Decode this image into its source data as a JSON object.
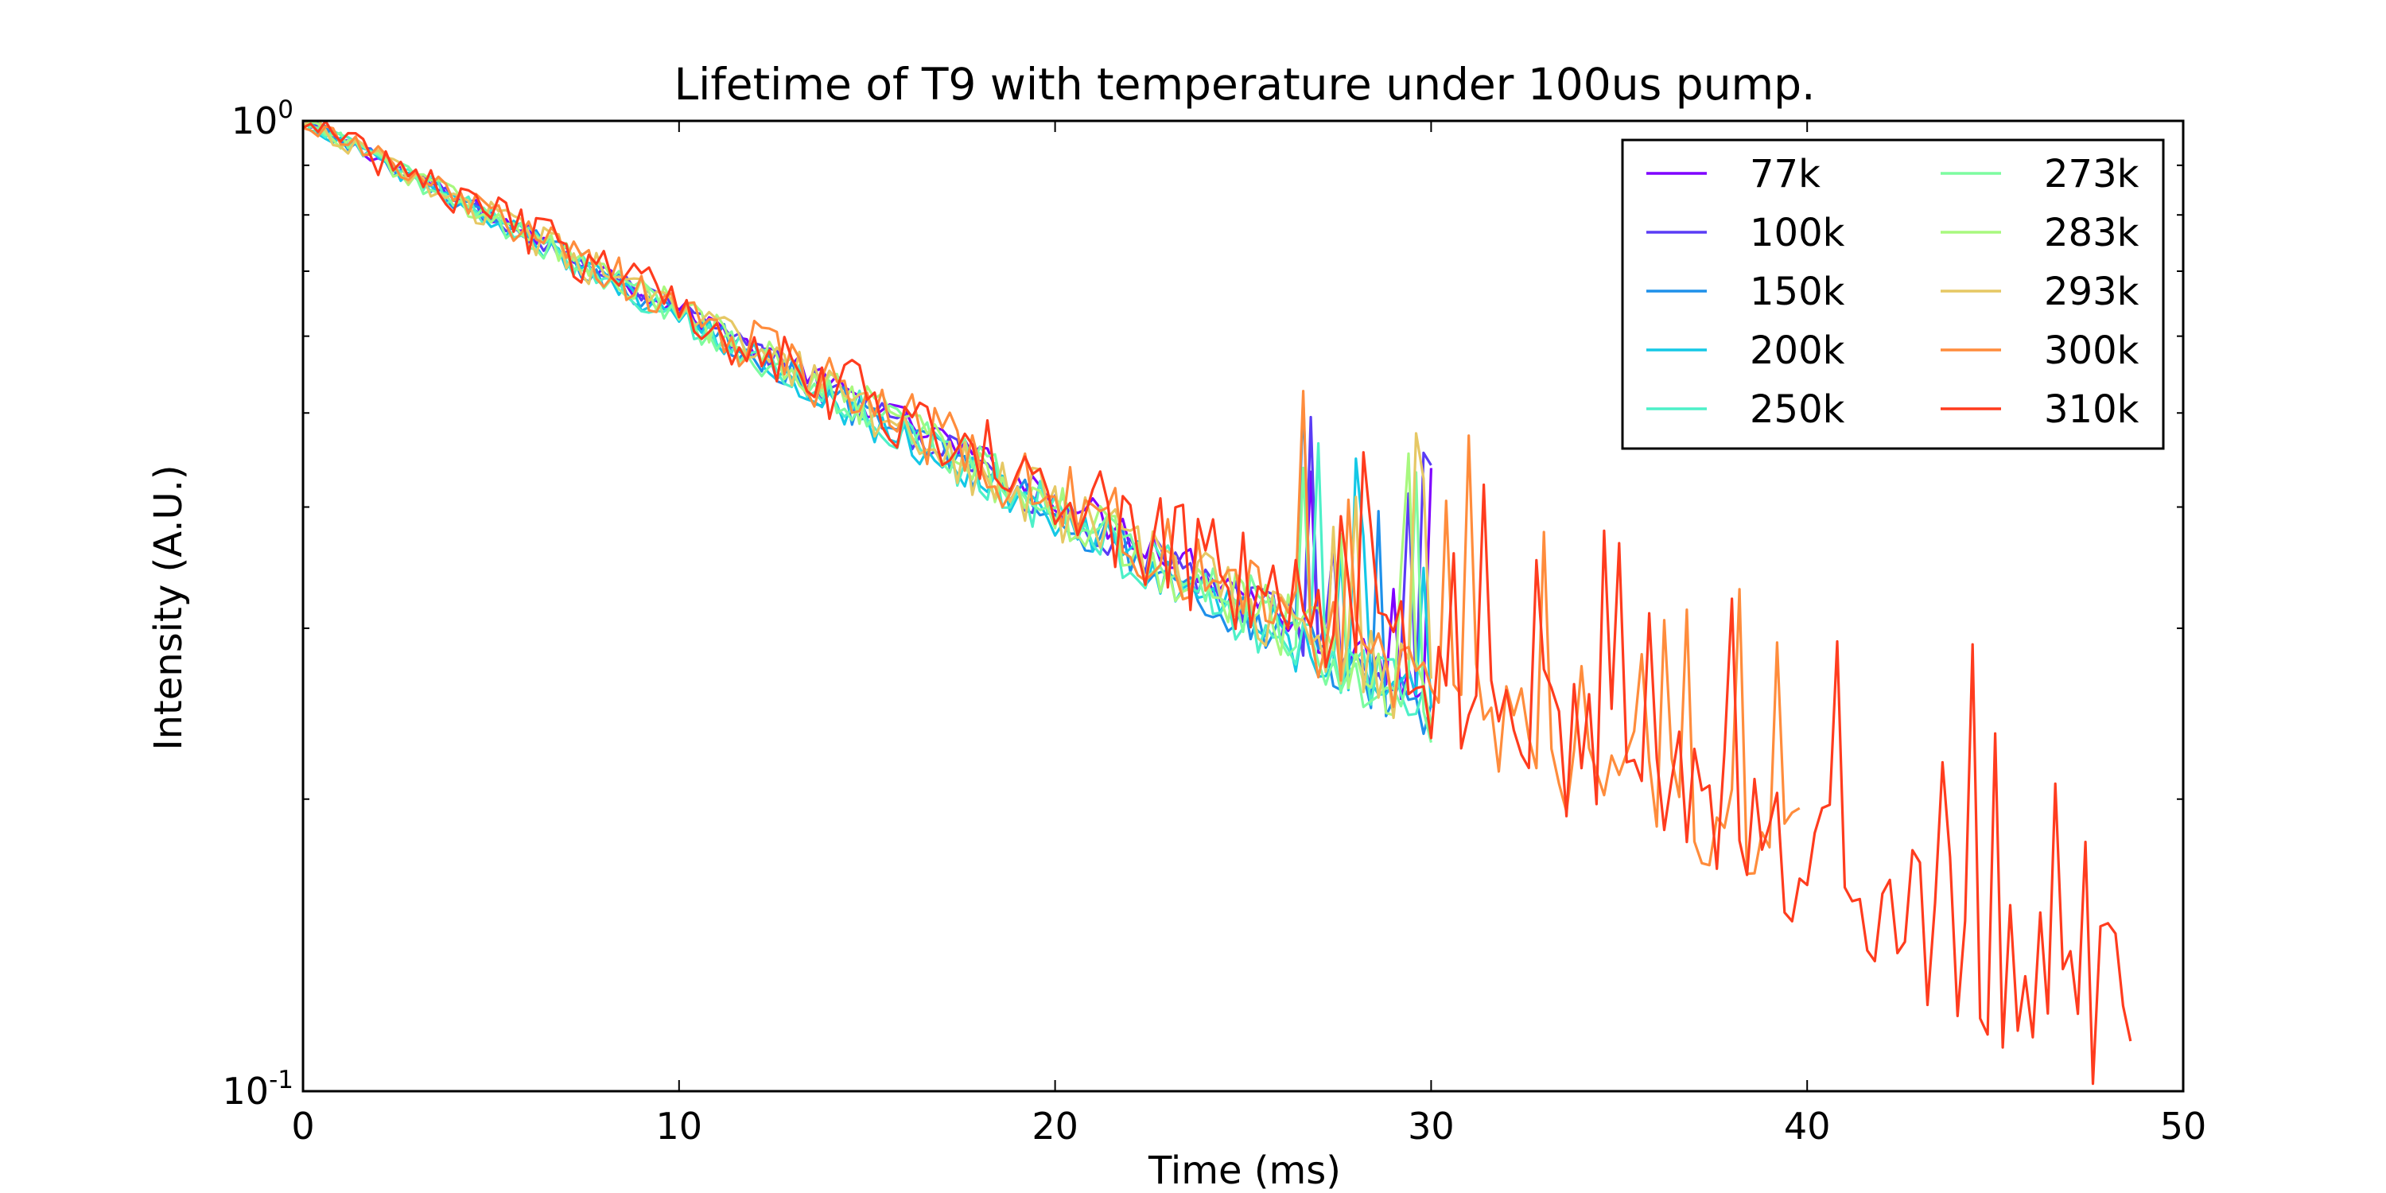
{
  "chart_data": {
    "type": "line",
    "title": "Lifetime of T9 with temperature under 100us pump.",
    "xlabel": "Time (ms)",
    "ylabel": "Intensity (A.U.)",
    "xlim": [
      0,
      50
    ],
    "ylim": [
      0.1,
      1.0
    ],
    "yscale": "log",
    "xticks": [
      0,
      10,
      20,
      30,
      40,
      50
    ],
    "xtick_labels": [
      "0",
      "10",
      "20",
      "30",
      "40",
      "50"
    ],
    "yticks": [
      {
        "value": 1.0,
        "base": "10",
        "exp": "0"
      },
      {
        "value": 0.1,
        "base": "10",
        "exp": "-1"
      }
    ],
    "grid": false,
    "legend": {
      "position": "top-right",
      "columns": 2
    },
    "series": [
      {
        "name": "77k",
        "color": "#7f00ff",
        "decay_ms": 22.2,
        "noise": 0.012,
        "points": [
          [
            0,
            1.0
          ],
          [
            10,
            0.64
          ],
          [
            20,
            0.41
          ],
          [
            25,
            0.33
          ],
          [
            28,
            0.28
          ],
          [
            30,
            0.26
          ]
        ]
      },
      {
        "name": "100k",
        "color": "#5a3cf5",
        "decay_ms": 22.0,
        "noise": 0.014,
        "points": [
          [
            0,
            1.0
          ],
          [
            10,
            0.635
          ],
          [
            20,
            0.4
          ],
          [
            25,
            0.32
          ],
          [
            28,
            0.28
          ],
          [
            30,
            0.26
          ]
        ]
      },
      {
        "name": "150k",
        "color": "#1e90ea",
        "decay_ms": 21.6,
        "noise": 0.016,
        "points": [
          [
            0,
            1.0
          ],
          [
            10,
            0.63
          ],
          [
            20,
            0.395
          ],
          [
            25,
            0.31
          ],
          [
            28,
            0.27
          ],
          [
            30,
            0.25
          ]
        ]
      },
      {
        "name": "200k",
        "color": "#14c8e6",
        "decay_ms": 21.4,
        "noise": 0.016,
        "points": [
          [
            0,
            1.0
          ],
          [
            10,
            0.625
          ],
          [
            20,
            0.39
          ],
          [
            25,
            0.31
          ],
          [
            28,
            0.27
          ],
          [
            30,
            0.25
          ]
        ]
      },
      {
        "name": "250k",
        "color": "#4df0c8",
        "decay_ms": 21.6,
        "noise": 0.018,
        "points": [
          [
            0,
            1.0
          ],
          [
            10,
            0.63
          ],
          [
            20,
            0.395
          ],
          [
            25,
            0.31
          ],
          [
            28,
            0.27
          ],
          [
            30,
            0.25
          ]
        ]
      },
      {
        "name": "273k",
        "color": "#7dfca0",
        "decay_ms": 21.8,
        "noise": 0.018,
        "points": [
          [
            0,
            1.0
          ],
          [
            10,
            0.63
          ],
          [
            20,
            0.4
          ],
          [
            25,
            0.32
          ],
          [
            28,
            0.27
          ],
          [
            30,
            0.25
          ]
        ]
      },
      {
        "name": "283k",
        "color": "#a8f87e",
        "decay_ms": 21.9,
        "noise": 0.02,
        "points": [
          [
            0,
            1.0
          ],
          [
            10,
            0.635
          ],
          [
            20,
            0.4
          ],
          [
            25,
            0.32
          ],
          [
            28,
            0.28
          ],
          [
            30,
            0.25
          ]
        ]
      },
      {
        "name": "293k",
        "color": "#e6c864",
        "decay_ms": 22.0,
        "noise": 0.022,
        "points": [
          [
            0,
            1.0
          ],
          [
            10,
            0.635
          ],
          [
            20,
            0.4
          ],
          [
            25,
            0.32
          ],
          [
            28,
            0.28
          ],
          [
            30,
            0.26
          ]
        ]
      },
      {
        "name": "300k",
        "color": "#ff8c3c",
        "decay_ms": 22.4,
        "noise": 0.026,
        "points": [
          [
            0,
            1.0
          ],
          [
            10,
            0.64
          ],
          [
            20,
            0.41
          ],
          [
            25,
            0.33
          ],
          [
            30,
            0.26
          ],
          [
            35,
            0.21
          ],
          [
            40,
            0.17
          ]
        ]
      },
      {
        "name": "310k",
        "color": "#ff3c1e",
        "decay_ms": 22.8,
        "noise": 0.032,
        "points": [
          [
            0,
            1.0
          ],
          [
            10,
            0.645
          ],
          [
            20,
            0.415
          ],
          [
            25,
            0.335
          ],
          [
            30,
            0.27
          ],
          [
            35,
            0.215
          ],
          [
            40,
            0.175
          ],
          [
            45,
            0.14
          ],
          [
            48.8,
            0.12
          ]
        ]
      }
    ]
  }
}
